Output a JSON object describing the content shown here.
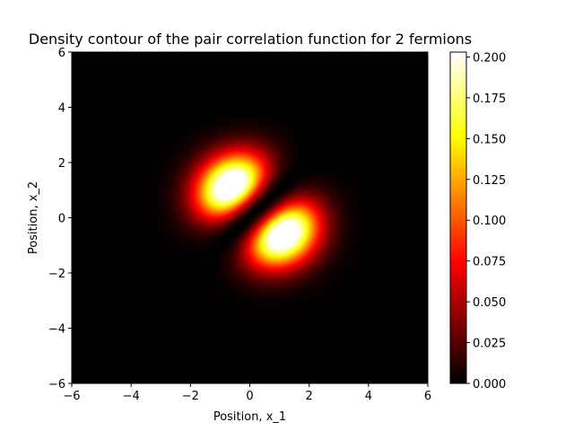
{
  "chart_data": {
    "type": "heatmap",
    "title": "Density contour of the pair correlation function for 2 fermions",
    "xlabel": "Position, x_1",
    "ylabel": "Position, x_2",
    "xlim": [
      -6,
      6
    ],
    "ylim": [
      -6,
      6
    ],
    "x_ticks": [
      -6,
      -4,
      -2,
      0,
      2,
      4,
      6
    ],
    "x_tick_labels": [
      "−6",
      "−4",
      "−2",
      "0",
      "2",
      "4",
      "6"
    ],
    "y_ticks": [
      -6,
      -4,
      -2,
      0,
      2,
      4,
      6
    ],
    "y_tick_labels": [
      "−6",
      "−4",
      "−2",
      "0",
      "2",
      "4",
      "6"
    ],
    "colormap": "hot",
    "colorbar": {
      "min": 0.0,
      "max": 0.203,
      "ticks": [
        0.0,
        0.025,
        0.05,
        0.075,
        0.1,
        0.125,
        0.15,
        0.175,
        0.2
      ],
      "tick_labels": [
        "0.000",
        "0.025",
        "0.050",
        "0.075",
        "0.100",
        "0.125",
        "0.150",
        "0.175",
        "0.200"
      ]
    },
    "peaks": [
      {
        "x1": -0.4,
        "x2": 0.9,
        "value": 0.203
      },
      {
        "x1": 0.9,
        "x2": -0.35,
        "value": 0.203
      }
    ],
    "grid": false,
    "legend": "none"
  }
}
